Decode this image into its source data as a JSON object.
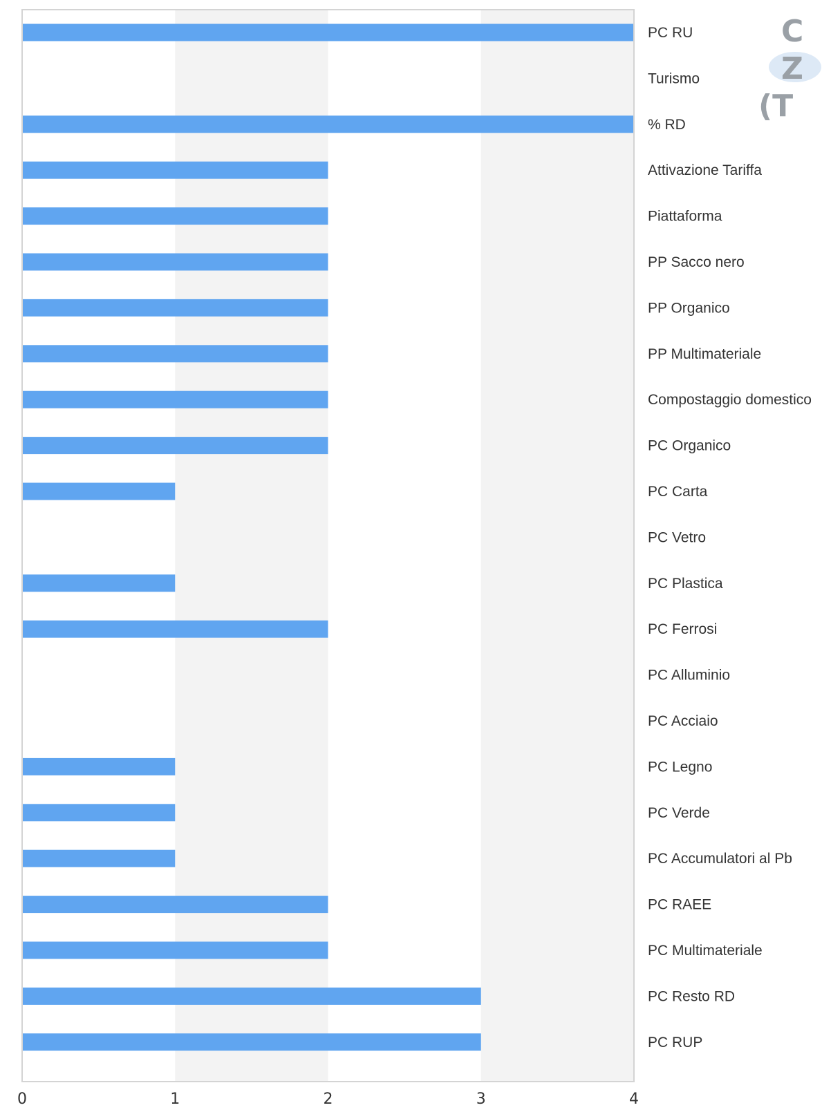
{
  "chart_data": {
    "type": "bar",
    "orientation": "horizontal",
    "title_fragments": [
      "C",
      "Z",
      "(T"
    ],
    "categories": [
      "PC RU",
      "Turismo",
      "% RD",
      "Attivazione Tariffa",
      "Piattaforma",
      "PP Sacco nero",
      "PP Organico",
      "PP Multimateriale",
      "Compostaggio domestico",
      "PC Organico",
      "PC Carta",
      "PC Vetro",
      "PC Plastica",
      "PC Ferrosi",
      "PC Alluminio",
      "PC Acciaio",
      "PC Legno",
      "PC Verde",
      "PC Accumulatori al Pb",
      "PC RAEE",
      "PC Multimateriale",
      "PC Resto RD",
      "PC RUP"
    ],
    "values": [
      4,
      0,
      4,
      2,
      2,
      2,
      2,
      2,
      2,
      2,
      1,
      0,
      1,
      2,
      0,
      0,
      1,
      1,
      1,
      2,
      2,
      3,
      3
    ],
    "xlim": [
      0,
      4
    ],
    "xticks": [
      "0",
      "1",
      "2",
      "3",
      "4"
    ],
    "xlabel": "",
    "ylabel": "",
    "grid": "alternating vertical bands",
    "label_position": "right",
    "colors": {
      "bar": "#60a5f0",
      "band": "#f3f3f3",
      "frame": "#d4d4d4",
      "text": "#333333",
      "title": "#9aa0a6"
    }
  }
}
